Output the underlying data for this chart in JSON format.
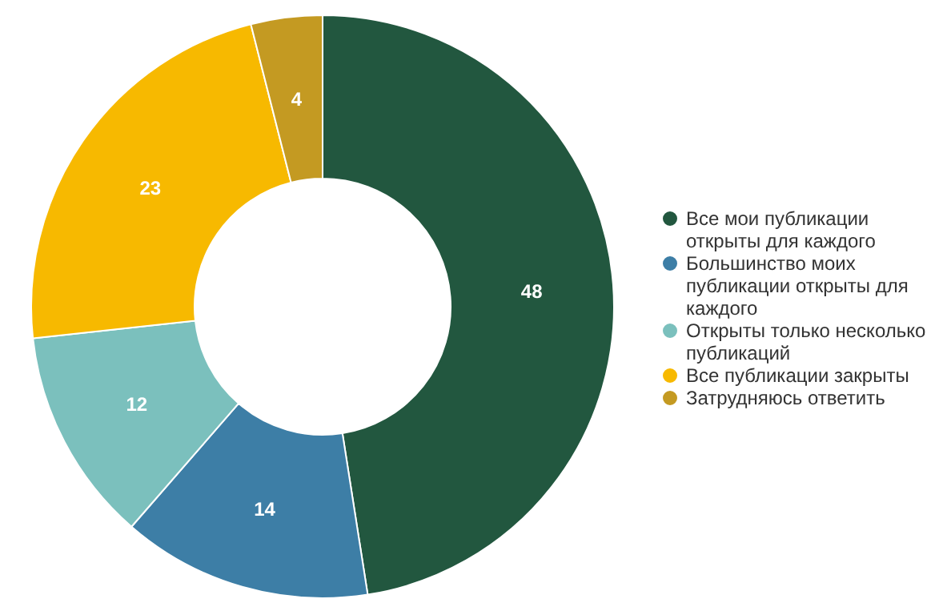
{
  "chart_data": {
    "type": "donut",
    "categories": [
      "Все мои публикации открыты для каждого",
      "Большинство моих публикации открыты для каждого",
      "Открыты только несколько публикаций",
      "Все публикации закрыты",
      "Затрудняюсь ответить"
    ],
    "values": [
      48,
      14,
      12,
      23,
      4
    ],
    "colors": [
      "#22573f",
      "#3d7ea6",
      "#7bc0bd",
      "#f7b900",
      "#c49a22"
    ],
    "data_labels": true,
    "legend": "right"
  }
}
